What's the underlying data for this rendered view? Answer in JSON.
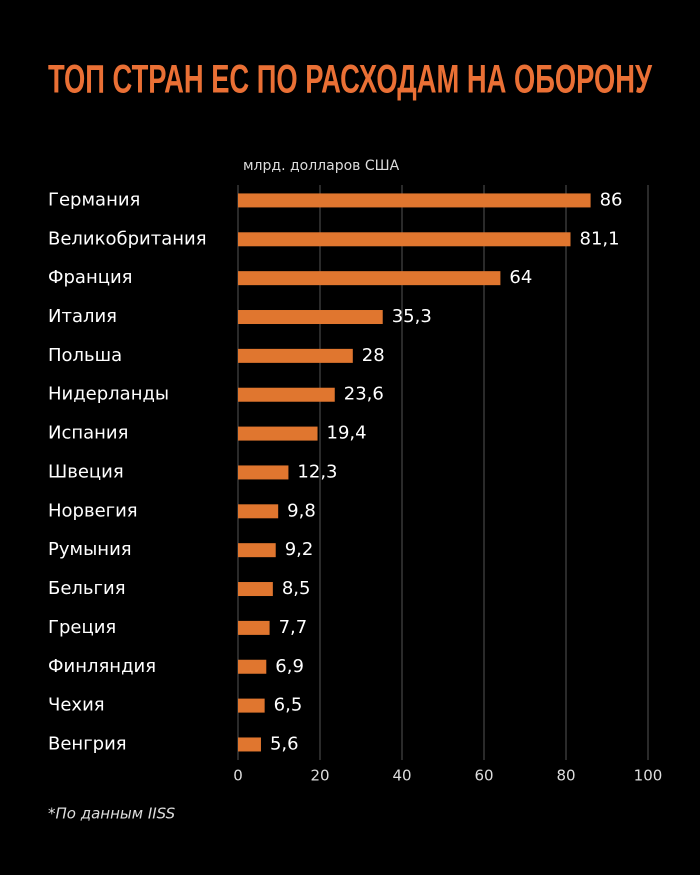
{
  "chart_data": {
    "type": "bar",
    "orientation": "horizontal",
    "title": "ТОП СТРАН ЕС ПО РАСХОДАМ НА ОБОРОНУ",
    "x_label": "млрд. долларов США",
    "note": "*По данным IISS",
    "categories": [
      "Германия",
      "Великобритания",
      "Франция",
      "Италия",
      "Польша",
      "Нидерланды",
      "Испания",
      "Швеция",
      "Норвегия",
      "Румыния",
      "Бельгия",
      "Греция",
      "Финляндия",
      "Чехия",
      "Венгрия"
    ],
    "values": [
      86,
      81.1,
      64,
      35.3,
      28,
      23.6,
      19.4,
      12.3,
      9.8,
      9.2,
      8.5,
      7.7,
      6.9,
      6.5,
      5.6
    ],
    "value_labels": [
      "86",
      "81,1",
      "64",
      "35,3",
      "28",
      "23,6",
      "19,4",
      "12,3",
      "9,8",
      "9,2",
      "8,5",
      "7,7",
      "6,9",
      "6,5",
      "5,6"
    ],
    "color": "#e0762f",
    "xlim": [
      0,
      100
    ],
    "xticks": [
      0,
      20,
      40,
      60,
      80,
      100
    ],
    "grid": true
  }
}
